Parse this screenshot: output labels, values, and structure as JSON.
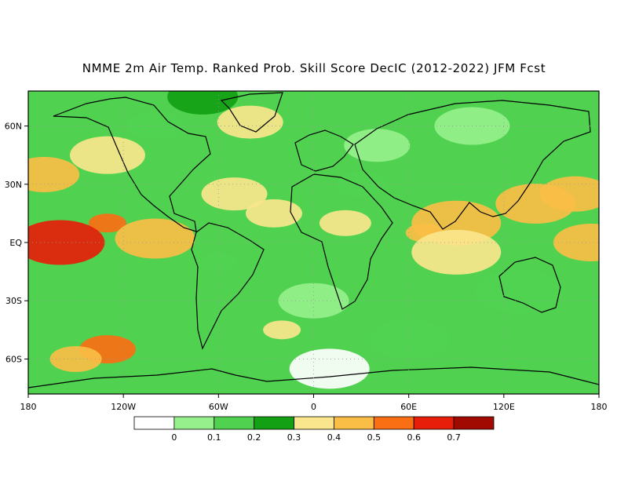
{
  "title": "NMME 2m Air Temp. Ranked Prob. Skill Score DecIC (2012-2022) JFM Fcst",
  "map": {
    "projection": "equirectangular",
    "lon_range": [
      -180,
      180
    ],
    "lat_range": [
      -78,
      78
    ],
    "x_ticks": [
      {
        "lon": -180,
        "label": "180"
      },
      {
        "lon": -120,
        "label": "120W"
      },
      {
        "lon": -60,
        "label": "60W"
      },
      {
        "lon": 0,
        "label": "0"
      },
      {
        "lon": 60,
        "label": "60E"
      },
      {
        "lon": 120,
        "label": "120E"
      },
      {
        "lon": 180,
        "label": "180"
      }
    ],
    "y_ticks": [
      {
        "lat": 60,
        "label": "60N"
      },
      {
        "lat": 30,
        "label": "30N"
      },
      {
        "lat": 0,
        "label": "EQ"
      },
      {
        "lat": -30,
        "label": "30S"
      },
      {
        "lat": -60,
        "label": "60S"
      }
    ],
    "gridlines": "dotted"
  },
  "colorbar": {
    "colors": [
      "#ffffff",
      "#96f08c",
      "#50d250",
      "#14a014",
      "#fae68c",
      "#fabe46",
      "#fa6e14",
      "#e61e0a",
      "#a00a00"
    ],
    "labels": [
      "0",
      "0.1",
      "0.2",
      "0.3",
      "0.4",
      "0.5",
      "0.6",
      "0.7"
    ]
  },
  "regions": [
    {
      "lon": -130,
      "lat": 10,
      "level": 6
    },
    {
      "lon": -160,
      "lat": 0,
      "level": 7
    },
    {
      "lon": -100,
      "lat": 2,
      "level": 5
    },
    {
      "lon": -170,
      "lat": 35,
      "level": 5
    },
    {
      "lon": -130,
      "lat": 45,
      "level": 4
    },
    {
      "lon": -50,
      "lat": 25,
      "level": 4
    },
    {
      "lon": -25,
      "lat": 15,
      "level": 4
    },
    {
      "lon": 20,
      "lat": 10,
      "level": 4
    },
    {
      "lon": 70,
      "lat": 5,
      "level": 5
    },
    {
      "lon": 90,
      "lat": 10,
      "level": 5
    },
    {
      "lon": 140,
      "lat": 20,
      "level": 5
    },
    {
      "lon": 165,
      "lat": 25,
      "level": 5
    },
    {
      "lon": 175,
      "lat": 0,
      "level": 5
    },
    {
      "lon": -40,
      "lat": 62,
      "level": 4
    },
    {
      "lon": -130,
      "lat": -55,
      "level": 6
    },
    {
      "lon": -150,
      "lat": -60,
      "level": 5
    },
    {
      "lon": -20,
      "lat": -45,
      "level": 4
    },
    {
      "lon": 90,
      "lat": -5,
      "level": 4
    },
    {
      "lon": 60,
      "lat": -50,
      "level": 2
    },
    {
      "lon": 0,
      "lat": -30,
      "level": 1
    },
    {
      "lon": 100,
      "lat": 60,
      "level": 1
    },
    {
      "lon": 40,
      "lat": 50,
      "level": 1
    },
    {
      "lon": -100,
      "lat": 60,
      "level": 2
    },
    {
      "lon": 30,
      "lat": 30,
      "level": 2
    },
    {
      "lon": -60,
      "lat": -10,
      "level": 2
    },
    {
      "lon": 130,
      "lat": -25,
      "level": 2
    },
    {
      "lon": 10,
      "lat": -65,
      "level": 0
    },
    {
      "lon": -70,
      "lat": 75,
      "level": 3
    }
  ]
}
